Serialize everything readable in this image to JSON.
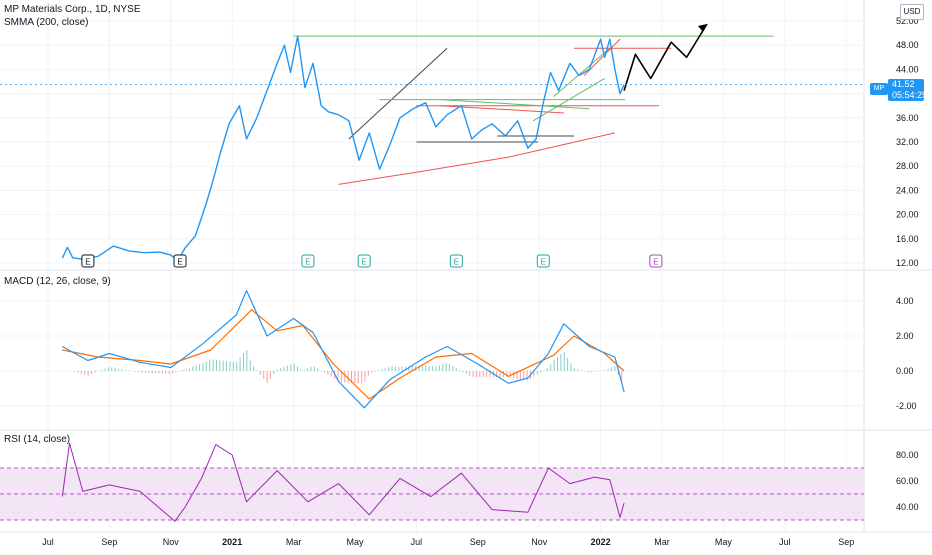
{
  "header": {
    "symbol_title": "MP Materials Corp., 1D, NYSE",
    "smma_title": "SMMA (200, close)",
    "macd_title": "MACD (12, 26, close, 9)",
    "rsi_title": "RSI (14, close)",
    "currency": "USD",
    "ticker": "MP",
    "last_price": "41.52",
    "countdown": "05:54:25"
  },
  "colors": {
    "price_line": "#2196f3",
    "smma": "#ef5350",
    "macd_line": "#2196f3",
    "signal_line": "#ff6d00",
    "hist_pos": "#26a69a",
    "hist_neg": "#ef5350",
    "rsi_line": "#9c27b0",
    "rsi_band": "#f3e5f5",
    "earnings_past": "#26a69a",
    "earnings_future": "#ab47bc"
  },
  "chart_data": [
    {
      "type": "line",
      "name": "price",
      "title": "MP Materials Corp., 1D, NYSE",
      "x": [
        "Jul",
        "Sep",
        "Nov",
        "2021",
        "Mar",
        "May",
        "Jul",
        "Sep",
        "Nov",
        "2022",
        "Mar",
        "May",
        "Jul",
        "Sep"
      ],
      "y_ticks": [
        "52.00",
        "48.00",
        "44.00",
        "40.00",
        "36.00",
        "32.00",
        "28.00",
        "24.00",
        "20.00",
        "16.00",
        "12.00"
      ],
      "ylim": [
        12,
        52
      ],
      "series": [
        {
          "values": [
            [
              "2020-07-15",
              12.8
            ],
            [
              "2020-07-20",
              14.6
            ],
            [
              "2020-07-25",
              12.9
            ],
            [
              "2020-08-05",
              12.6
            ],
            [
              "2020-08-20",
              13.1
            ],
            [
              "2020-09-05",
              14.8
            ],
            [
              "2020-09-20",
              14.0
            ],
            [
              "2020-10-05",
              13.7
            ],
            [
              "2020-10-20",
              13.8
            ],
            [
              "2020-11-01",
              13.3
            ],
            [
              "2020-11-08",
              12.4
            ],
            [
              "2020-11-15",
              14.5
            ],
            [
              "2020-11-25",
              16.5
            ],
            [
              "2020-12-05",
              21.5
            ],
            [
              "2020-12-12",
              25.5
            ],
            [
              "2020-12-20",
              30.5
            ],
            [
              "2020-12-28",
              35.0
            ],
            [
              "2021-01-08",
              38.0
            ],
            [
              "2021-01-15",
              32.5
            ],
            [
              "2021-01-25",
              36.0
            ],
            [
              "2021-02-05",
              40.5
            ],
            [
              "2021-02-15",
              45.0
            ],
            [
              "2021-02-22",
              48.0
            ],
            [
              "2021-02-28",
              43.5
            ],
            [
              "2021-03-05",
              49.5
            ],
            [
              "2021-03-12",
              41.0
            ],
            [
              "2021-03-20",
              45.0
            ],
            [
              "2021-03-28",
              38.0
            ],
            [
              "2021-04-05",
              37.0
            ],
            [
              "2021-04-15",
              36.5
            ],
            [
              "2021-04-25",
              35.5
            ],
            [
              "2021-05-05",
              29.0
            ],
            [
              "2021-05-15",
              33.5
            ],
            [
              "2021-05-25",
              27.5
            ],
            [
              "2021-06-05",
              31.5
            ],
            [
              "2021-06-15",
              36.0
            ],
            [
              "2021-06-28",
              37.5
            ],
            [
              "2021-07-10",
              38.5
            ],
            [
              "2021-07-20",
              34.5
            ],
            [
              "2021-08-01",
              36.5
            ],
            [
              "2021-08-15",
              38.0
            ],
            [
              "2021-08-25",
              32.5
            ],
            [
              "2021-09-05",
              34.0
            ],
            [
              "2021-09-15",
              35.0
            ],
            [
              "2021-09-28",
              33.0
            ],
            [
              "2021-10-10",
              35.5
            ],
            [
              "2021-10-20",
              31.0
            ],
            [
              "2021-10-28",
              32.5
            ],
            [
              "2021-11-05",
              38.5
            ],
            [
              "2021-11-12",
              43.5
            ],
            [
              "2021-11-20",
              40.5
            ],
            [
              "2021-12-01",
              45.0
            ],
            [
              "2021-12-10",
              43.0
            ],
            [
              "2021-12-20",
              44.0
            ],
            [
              "2022-01-01",
              49.0
            ],
            [
              "2022-01-05",
              46.0
            ],
            [
              "2022-01-10",
              49.0
            ],
            [
              "2022-01-15",
              44.0
            ],
            [
              "2022-01-20",
              40.0
            ],
            [
              "2022-01-24",
              41.5
            ]
          ]
        },
        {
          "values": [
            [
              "2022-01-24",
              40.5
            ],
            [
              "2022-02-05",
              46.5
            ],
            [
              "2022-02-20",
              42.5
            ],
            [
              "2022-03-10",
              48.5
            ],
            [
              "2022-03-25",
              46.0
            ],
            [
              "2022-04-15",
              51.5
            ]
          ]
        }
      ]
    },
    {
      "type": "line",
      "name": "smma",
      "title": "SMMA (200, close)",
      "series": [
        {
          "values": [
            [
              "2021-04-15",
              25.0
            ],
            [
              "2021-07-01",
              27.0
            ],
            [
              "2021-10-01",
              29.5
            ],
            [
              "2022-01-15",
              33.5
            ]
          ]
        }
      ]
    },
    {
      "type": "line",
      "name": "macd",
      "title": "MACD (12, 26, close, 9)",
      "y_ticks": [
        "4.00",
        "2.00",
        "0.00",
        "-2.00"
      ],
      "ylim": [
        -3,
        5
      ],
      "series": [
        {
          "values": [
            [
              "2020-07-15",
              1.4
            ],
            [
              "2020-08-10",
              0.6
            ],
            [
              "2020-09-01",
              1.0
            ],
            [
              "2020-10-01",
              0.5
            ],
            [
              "2020-11-01",
              0.2
            ],
            [
              "2020-12-01",
              1.5
            ],
            [
              "2021-01-05",
              3.2
            ],
            [
              "2021-01-15",
              4.6
            ],
            [
              "2021-02-05",
              2.0
            ],
            [
              "2021-03-01",
              3.0
            ],
            [
              "2021-03-20",
              2.2
            ],
            [
              "2021-04-15",
              -0.6
            ],
            [
              "2021-05-10",
              -2.1
            ],
            [
              "2021-06-05",
              -0.5
            ],
            [
              "2021-07-10",
              0.8
            ],
            [
              "2021-08-01",
              1.4
            ],
            [
              "2021-09-01",
              0.4
            ],
            [
              "2021-10-01",
              -0.7
            ],
            [
              "2021-10-20",
              -0.4
            ],
            [
              "2021-11-10",
              1.0
            ],
            [
              "2021-11-25",
              2.7
            ],
            [
              "2021-12-20",
              1.4
            ],
            [
              "2022-01-15",
              0.8
            ],
            [
              "2022-01-24",
              -1.2
            ]
          ]
        },
        {
          "values": [
            [
              "2020-07-15",
              1.2
            ],
            [
              "2020-08-20",
              0.8
            ],
            [
              "2020-10-01",
              0.6
            ],
            [
              "2020-11-01",
              0.4
            ],
            [
              "2020-12-10",
              1.2
            ],
            [
              "2021-01-20",
              3.5
            ],
            [
              "2021-02-15",
              2.3
            ],
            [
              "2021-03-10",
              2.6
            ],
            [
              "2021-04-10",
              0.4
            ],
            [
              "2021-05-15",
              -1.6
            ],
            [
              "2021-06-15",
              -0.4
            ],
            [
              "2021-07-20",
              0.8
            ],
            [
              "2021-08-25",
              1.0
            ],
            [
              "2021-10-01",
              -0.3
            ],
            [
              "2021-11-15",
              0.9
            ],
            [
              "2021-12-05",
              2.0
            ],
            [
              "2022-01-05",
              1.0
            ],
            [
              "2022-01-24",
              0.0
            ]
          ]
        }
      ]
    },
    {
      "type": "line",
      "name": "rsi",
      "title": "RSI (14, close)",
      "y_ticks": [
        "80.00",
        "60.00",
        "40.00"
      ],
      "ylim": [
        25,
        95
      ],
      "series": [
        {
          "values": [
            [
              "2020-07-15",
              48
            ],
            [
              "2020-07-22",
              89
            ],
            [
              "2020-08-05",
              52
            ],
            [
              "2020-09-01",
              57
            ],
            [
              "2020-10-01",
              52
            ],
            [
              "2020-11-05",
              29
            ],
            [
              "2020-11-15",
              40
            ],
            [
              "2020-12-01",
              62
            ],
            [
              "2020-12-15",
              88
            ],
            [
              "2021-01-01",
              80
            ],
            [
              "2021-01-15",
              44
            ],
            [
              "2021-02-15",
              68
            ],
            [
              "2021-03-15",
              44
            ],
            [
              "2021-04-15",
              58
            ],
            [
              "2021-05-15",
              34
            ],
            [
              "2021-06-15",
              62
            ],
            [
              "2021-07-15",
              48
            ],
            [
              "2021-08-15",
              66
            ],
            [
              "2021-09-15",
              38
            ],
            [
              "2021-10-20",
              36
            ],
            [
              "2021-11-10",
              70
            ],
            [
              "2021-12-01",
              58
            ],
            [
              "2021-12-25",
              63
            ],
            [
              "2022-01-10",
              61
            ],
            [
              "2022-01-20",
              32
            ],
            [
              "2022-01-24",
              43
            ]
          ]
        }
      ],
      "bands": [
        30,
        70
      ]
    }
  ],
  "earnings_markers": [
    "E",
    "E",
    "E",
    "E",
    "E",
    "E",
    "E"
  ]
}
